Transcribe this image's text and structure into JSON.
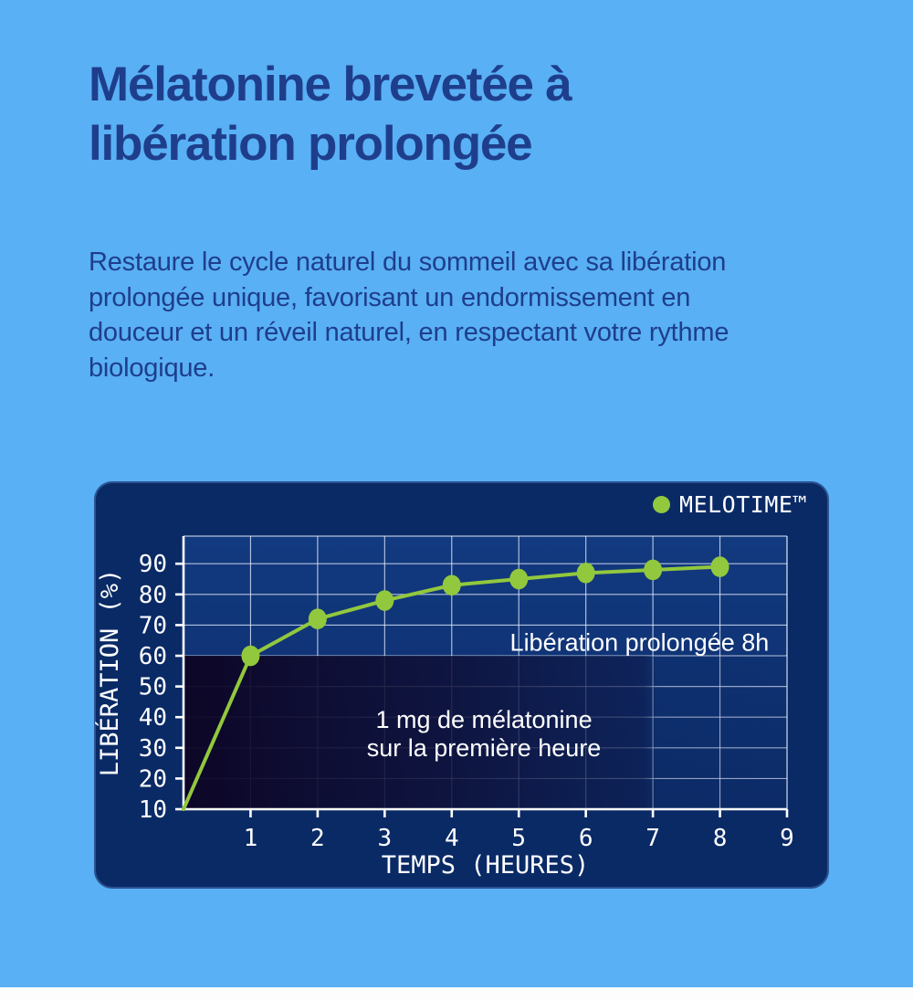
{
  "page": {
    "background_color": "#59B0F4",
    "heading_color": "#1E3E8C",
    "heading_line1": "Mélatonine brevetée à",
    "heading_line2": "libération prolongée",
    "body_lines": [
      "Restaure le cycle naturel du sommeil avec sa libération",
      "prolongée unique, favorisant un endormissement en",
      "douceur et un réveil naturel, en respectant votre rythme",
      "biologique."
    ]
  },
  "chart_data": {
    "type": "line",
    "title": "",
    "xlabel": "TEMPS (HEURES)",
    "ylabel": "LIBÉRATION (%)",
    "xlim": [
      0,
      9
    ],
    "ylim": [
      10,
      99
    ],
    "x_ticks": [
      1,
      2,
      3,
      4,
      5,
      6,
      7,
      8,
      9
    ],
    "y_ticks": [
      10,
      20,
      30,
      40,
      50,
      60,
      70,
      80,
      90
    ],
    "grid": true,
    "legend_position": "top-right",
    "panel_color": "#0A2A66",
    "plot_bg_top": "#123A80",
    "plot_bg_bottom": "#0C2C6A",
    "grid_color": "rgba(235,242,255,0.75)",
    "axis_color": "#FFFFFF",
    "series": [
      {
        "name": "MELOTIME™",
        "color": "#92C83D",
        "x": [
          0,
          1,
          2,
          3,
          4,
          5,
          6,
          7,
          8
        ],
        "values": [
          10,
          60,
          72,
          78,
          83,
          85,
          87,
          88,
          89
        ],
        "marker_start_index": 1
      }
    ],
    "annotations": [
      {
        "text": "Libération prolongée 8h",
        "x": 6.8,
        "y": 64.3
      },
      {
        "text": "1 mg de mélatonine",
        "x": 4.48,
        "y": 39.2
      },
      {
        "text": "sur la première heure",
        "x": 4.48,
        "y": 30.0
      }
    ],
    "shaded_region": {
      "meaning": "first-hour release zone",
      "x_range": [
        0,
        9
      ],
      "y_range": [
        10,
        60
      ],
      "fade_after_x": 7,
      "color_left": "#0D0423",
      "color_right": "#0B2458"
    }
  }
}
